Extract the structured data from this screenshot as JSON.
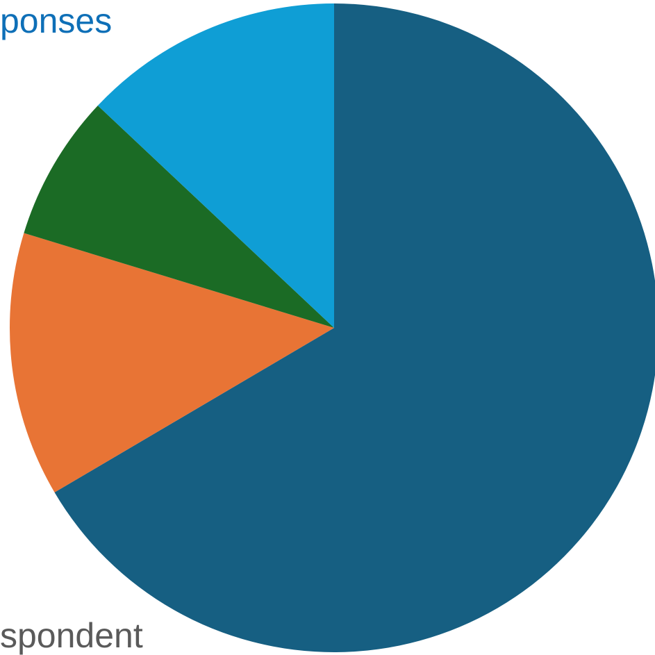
{
  "chart_data": {
    "type": "pie",
    "series": [
      {
        "values": [
          66.6,
          13.2,
          7.3,
          13.0
        ],
        "colors": [
          "#165F82",
          "#E87435",
          "#1B6B25",
          "#0F9ED5"
        ]
      }
    ],
    "labels": {
      "top_fragment": "ponses",
      "bottom_fragment": "spondent"
    },
    "colors": {
      "top_fragment": "#0E6FB7",
      "bottom_fragment": "#5A5A5A"
    },
    "start_angle_deg": 0,
    "direction": "clockwise"
  }
}
